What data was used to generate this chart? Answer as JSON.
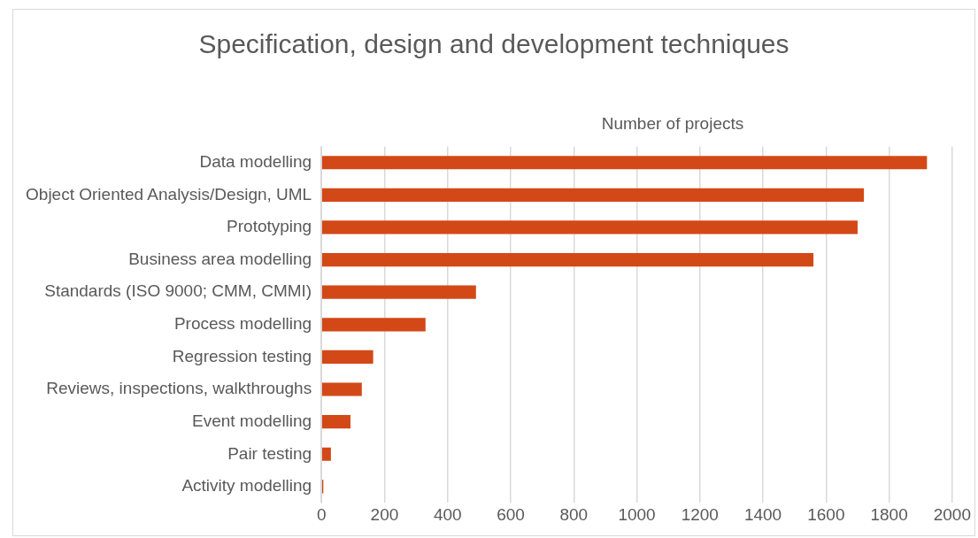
{
  "chart_data": {
    "type": "bar",
    "orientation": "horizontal",
    "title": "Specification, design and development techniques",
    "xlabel": "Number of projects",
    "categories": [
      "Data modelling",
      "Object Oriented Analysis/Design, UML",
      "Prototyping",
      "Business area modelling",
      "Standards (ISO 9000; CMM, CMMI)",
      "Process modelling",
      "Regression testing",
      "Reviews, inspections, walkthroughs",
      "Event modelling",
      "Pair testing",
      "Activity modelling"
    ],
    "values": [
      1920,
      1720,
      1700,
      1560,
      490,
      330,
      164,
      128,
      92,
      30,
      6
    ],
    "color": "#d34817",
    "xlim": [
      0,
      2000
    ],
    "xticks": [
      0,
      200,
      400,
      600,
      800,
      1000,
      1200,
      1400,
      1600,
      1800,
      2000
    ],
    "grid": "x"
  }
}
